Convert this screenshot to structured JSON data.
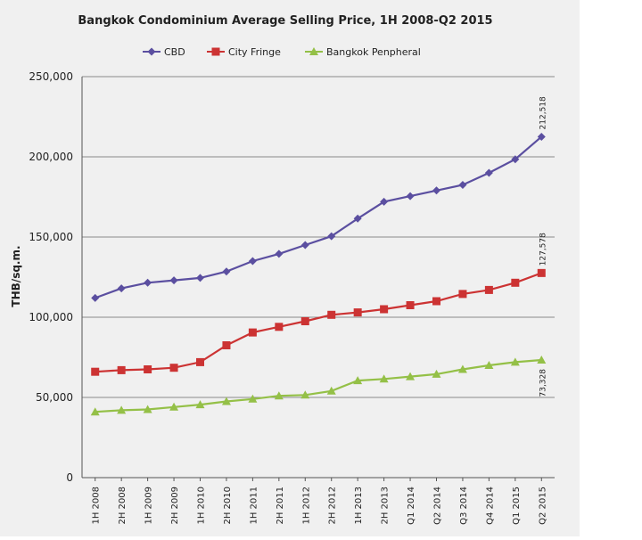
{
  "chart_data": {
    "type": "line",
    "title": "Bangkok Condominium Average Selling Price, 1H 2008-Q2 2015",
    "xlabel": "",
    "ylabel": "THB/sq.m.",
    "ylim": [
      0,
      250000
    ],
    "yticks": [
      "0",
      "50,000",
      "100,000",
      "150,000",
      "200,000",
      "250,000"
    ],
    "grid": true,
    "legend_position": "top",
    "categories": [
      "1H 2008",
      "2H 2008",
      "1H 2009",
      "2H 2009",
      "1H 2010",
      "2H 2010",
      "1H 2011",
      "2H 2011",
      "1H 2012",
      "2H 2012",
      "1H 2013",
      "2H 2013",
      "Q1 2014",
      "Q2 2014",
      "Q3 2014",
      "Q4 2014",
      "Q1 2015",
      "Q2 2015"
    ],
    "series": [
      {
        "name": "CBD",
        "color": "#5b4fa0",
        "marker": "diamond",
        "values": [
          112000,
          118000,
          121500,
          123000,
          124500,
          128500,
          135000,
          139500,
          145000,
          150500,
          161500,
          172000,
          175500,
          179000,
          182500,
          190000,
          198500,
          212518
        ],
        "end_label": "212,518"
      },
      {
        "name": "City Fringe",
        "color": "#cc3333",
        "marker": "square",
        "values": [
          66000,
          67000,
          67500,
          68500,
          72000,
          82500,
          90500,
          94000,
          97500,
          101500,
          103000,
          105000,
          107500,
          110000,
          114500,
          117000,
          121500,
          127578
        ],
        "end_label": "127,578"
      },
      {
        "name": "Bangkok Penpheral",
        "color": "#94c047",
        "marker": "triangle",
        "values": [
          41000,
          42000,
          42500,
          44000,
          45500,
          47500,
          49000,
          51000,
          51500,
          54000,
          60500,
          61500,
          63000,
          64500,
          67500,
          70000,
          72000,
          73328
        ],
        "end_label": "73,328"
      }
    ]
  }
}
